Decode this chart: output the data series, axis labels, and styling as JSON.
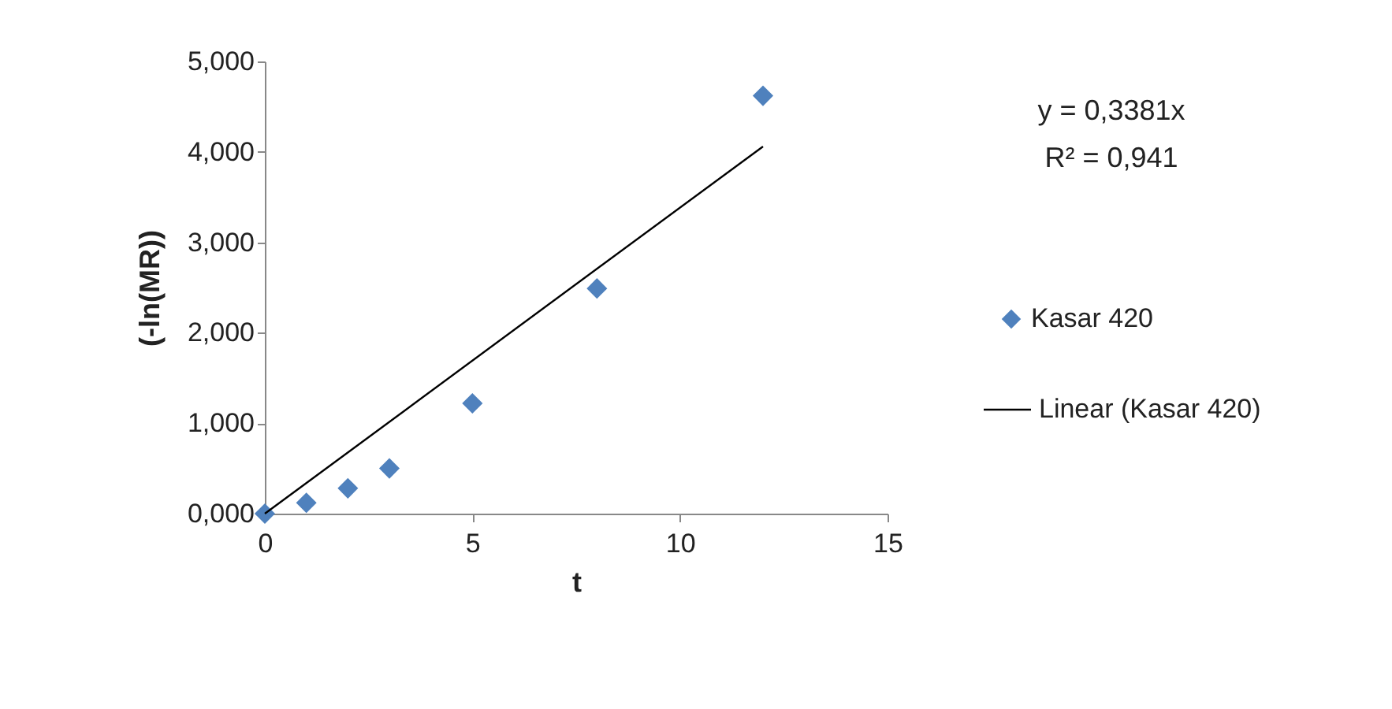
{
  "chart_data": {
    "type": "scatter",
    "xlabel": "t",
    "ylabel": "(-ln(MR))",
    "marker": "diamond",
    "legend": "right",
    "grid": false,
    "xlim": [
      0,
      15
    ],
    "xticks": [
      0,
      5,
      10,
      15
    ],
    "ylim": [
      0,
      5
    ],
    "yticks": [
      {
        "value": 0,
        "label": "0,000"
      },
      {
        "value": 1,
        "label": "1,000"
      },
      {
        "value": 2,
        "label": "2,000"
      },
      {
        "value": 3,
        "label": "3,000"
      },
      {
        "value": 4,
        "label": "4,000"
      },
      {
        "value": 5,
        "label": "5,000"
      }
    ],
    "annotations": [
      "y = 0,3381x",
      "R² = 0,941"
    ],
    "series": [
      {
        "name": "Kasar 420",
        "color": "#4f81bd",
        "x": [
          0,
          1,
          2,
          3,
          5,
          8,
          12
        ],
        "values": [
          0.0,
          0.12,
          0.28,
          0.5,
          1.22,
          2.49,
          4.62
        ]
      },
      {
        "name": "Linear (Kasar 420)",
        "type": "line",
        "marker": "none",
        "color": "#000000",
        "x": [
          0,
          12
        ],
        "values": [
          0,
          4.06
        ]
      }
    ]
  }
}
